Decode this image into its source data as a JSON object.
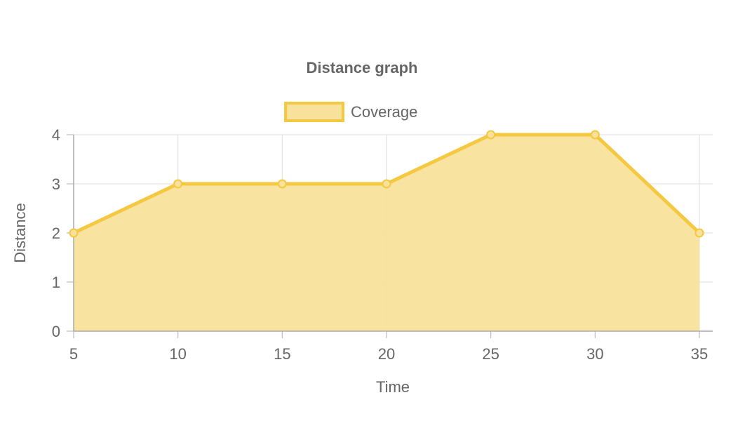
{
  "chart_data": {
    "type": "area",
    "title": "Distance graph",
    "xlabel": "Time",
    "ylabel": "Distance",
    "x": [
      5,
      10,
      15,
      20,
      25,
      30,
      35
    ],
    "series": [
      {
        "name": "Coverage",
        "values": [
          2,
          3,
          3,
          3,
          4,
          4,
          2
        ],
        "color": "#f5c842",
        "fill": "#f8e29b"
      }
    ],
    "xlim": [
      5,
      35
    ],
    "ylim": [
      0,
      4
    ],
    "x_ticks": [
      5,
      10,
      15,
      20,
      25,
      30,
      35
    ],
    "y_ticks": [
      0,
      1,
      2,
      3,
      4
    ],
    "grid": true,
    "legend_position": "top-center"
  }
}
